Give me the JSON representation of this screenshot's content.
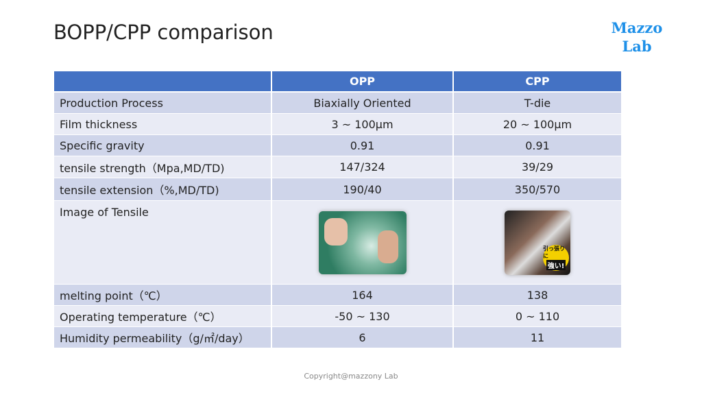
{
  "title": "BOPP/CPP comparison",
  "logo": {
    "line1": "Mazzo",
    "line2": "Lab"
  },
  "table": {
    "header": [
      "OPP",
      "CPP"
    ],
    "rows": [
      [
        "Production Process",
        "Biaxially Oriented",
        "T-die"
      ],
      [
        "Film thickness",
        "3 ~ 100μm",
        "20 ~ 100μm"
      ],
      [
        "Specific gravity",
        "0.91",
        "0.91"
      ],
      [
        "tensile strength（Mpa,MD/TD)",
        "147/324",
        "39/29"
      ],
      [
        "tensile extension（%,MD/TD)",
        "190/40",
        "350/570"
      ],
      [
        "Image of Tensile"
      ],
      [
        "melting point（℃）",
        "164",
        "138"
      ],
      [
        "Operating temperature（℃）",
        "-50 ~ 130",
        "0 ~ 110"
      ],
      [
        "Humidity permeability（g/㎡/day）",
        "6",
        "11"
      ]
    ],
    "cpp_image_badge": [
      "引っ張りに",
      "強い!"
    ]
  },
  "footer": "Copyright@mazzony Lab"
}
